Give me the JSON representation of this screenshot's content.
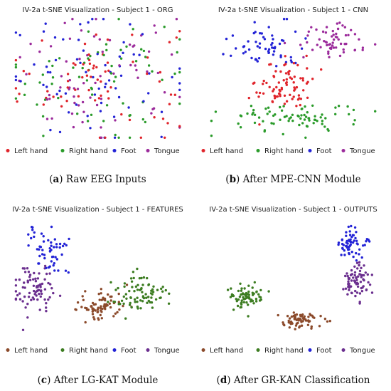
{
  "chart_data": [
    {
      "type": "scatter",
      "id": "a",
      "title": "IV-2a t-SNE Visualization - Subject 1 - ORG",
      "caption_letter": "a",
      "caption": "Raw EEG Inputs",
      "legend": [
        "Left hand",
        "Right hand",
        "Foot",
        "Tongue"
      ],
      "colors": [
        "#e0242b",
        "#2a9b2a",
        "#2323d6",
        "#9b2a9b"
      ],
      "series": [
        {
          "name": "Left hand",
          "clusters": [
            {
              "cx": 0,
              "cy": 0,
              "sx": 0.55,
              "sy": 0.5,
              "n": 70
            }
          ]
        },
        {
          "name": "Right hand",
          "clusters": [
            {
              "cx": 0,
              "cy": 0,
              "sx": 0.55,
              "sy": 0.5,
              "n": 70
            }
          ]
        },
        {
          "name": "Foot",
          "clusters": [
            {
              "cx": 0,
              "cy": 0,
              "sx": 0.55,
              "sy": 0.5,
              "n": 70
            }
          ]
        },
        {
          "name": "Tongue",
          "clusters": [
            {
              "cx": 0,
              "cy": 0,
              "sx": 0.55,
              "sy": 0.5,
              "n": 70
            }
          ]
        }
      ]
    },
    {
      "type": "scatter",
      "id": "b",
      "title": "IV-2a t-SNE Visualization - Subject 1 - CNN",
      "caption_letter": "b",
      "caption": "After MPE-CNN Module",
      "legend": [
        "Left hand",
        "Right hand",
        "Foot",
        "Tongue"
      ],
      "colors": [
        "#e0242b",
        "#2a9b2a",
        "#2323d6",
        "#9b2a9b"
      ],
      "series": [
        {
          "name": "Left hand",
          "clusters": [
            {
              "cx": -0.1,
              "cy": -0.1,
              "sx": 0.17,
              "sy": 0.22,
              "n": 80
            }
          ]
        },
        {
          "name": "Right hand",
          "clusters": [
            {
              "cx": 0.0,
              "cy": -0.65,
              "sx": 0.42,
              "sy": 0.13,
              "n": 80
            }
          ]
        },
        {
          "name": "Foot",
          "clusters": [
            {
              "cx": -0.35,
              "cy": 0.55,
              "sx": 0.22,
              "sy": 0.18,
              "n": 60
            }
          ]
        },
        {
          "name": "Tongue",
          "clusters": [
            {
              "cx": 0.45,
              "cy": 0.6,
              "sx": 0.25,
              "sy": 0.16,
              "n": 60
            }
          ]
        }
      ]
    },
    {
      "type": "scatter",
      "id": "c",
      "title": "IV-2a t-SNE Visualization - Subject 1 - FEATURES",
      "caption_letter": "c",
      "caption": "After LG-KAT Module",
      "legend": [
        "Left hand",
        "Right hand",
        "Foot",
        "Tongue"
      ],
      "colors": [
        "#8b4a2b",
        "#3d7d22",
        "#2323d6",
        "#6b2f8f"
      ],
      "series": [
        {
          "name": "Left hand",
          "clusters": [
            {
              "cx": 0.05,
              "cy": -0.45,
              "sx": 0.16,
              "sy": 0.13,
              "n": 75
            }
          ]
        },
        {
          "name": "Right hand",
          "clusters": [
            {
              "cx": 0.5,
              "cy": -0.3,
              "sx": 0.16,
              "sy": 0.17,
              "n": 80
            }
          ]
        },
        {
          "name": "Foot",
          "clusters": [
            {
              "cx": -0.6,
              "cy": 0.45,
              "sx": 0.13,
              "sy": 0.2,
              "n": 55
            }
          ]
        },
        {
          "name": "Tongue",
          "clusters": [
            {
              "cx": -0.75,
              "cy": -0.2,
              "sx": 0.14,
              "sy": 0.2,
              "n": 80
            }
          ]
        }
      ]
    },
    {
      "type": "scatter",
      "id": "d",
      "title": "IV-2a t-SNE Visualization - Subject 1 - OUTPUTS",
      "caption_letter": "d",
      "caption": "After GR-KAN Classification",
      "legend": [
        "Left hand",
        "Right hand",
        "Foot",
        "Tongue"
      ],
      "colors": [
        "#8b4a2b",
        "#3d7d22",
        "#2323d6",
        "#6b2f8f"
      ],
      "series": [
        {
          "name": "Left hand",
          "clusters": [
            {
              "cx": 0.05,
              "cy": -0.72,
              "sx": 0.14,
              "sy": 0.07,
              "n": 70
            }
          ]
        },
        {
          "name": "Right hand",
          "clusters": [
            {
              "cx": -0.55,
              "cy": -0.3,
              "sx": 0.1,
              "sy": 0.1,
              "n": 70
            }
          ]
        },
        {
          "name": "Foot",
          "clusters": [
            {
              "cx": 0.7,
              "cy": 0.55,
              "sx": 0.08,
              "sy": 0.12,
              "n": 60
            }
          ]
        },
        {
          "name": "Tongue",
          "clusters": [
            {
              "cx": 0.75,
              "cy": -0.05,
              "sx": 0.08,
              "sy": 0.16,
              "n": 75
            }
          ]
        }
      ]
    }
  ]
}
